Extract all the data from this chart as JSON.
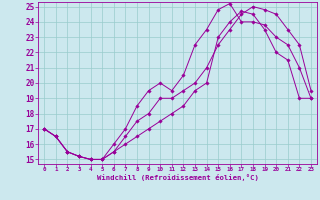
{
  "xlabel": "Windchill (Refroidissement éolien,°C)",
  "bg_color": "#cce8ee",
  "line_color": "#990099",
  "grid_color": "#99cccc",
  "xlim": [
    -0.5,
    23.5
  ],
  "ylim": [
    14.7,
    25.3
  ],
  "xticks": [
    0,
    1,
    2,
    3,
    4,
    5,
    6,
    7,
    8,
    9,
    10,
    11,
    12,
    13,
    14,
    15,
    16,
    17,
    18,
    19,
    20,
    21,
    22,
    23
  ],
  "yticks": [
    15,
    16,
    17,
    18,
    19,
    20,
    21,
    22,
    23,
    24,
    25
  ],
  "curve1_x": [
    0,
    1,
    2,
    3,
    4,
    5,
    6,
    7,
    8,
    9,
    10,
    11,
    12,
    13,
    14,
    15,
    16,
    17,
    18,
    19,
    20,
    21,
    22,
    23
  ],
  "curve1_y": [
    17.0,
    16.5,
    15.5,
    15.2,
    15.0,
    15.0,
    15.5,
    16.0,
    16.5,
    17.0,
    17.5,
    18.0,
    18.5,
    19.5,
    20.0,
    23.0,
    24.0,
    24.7,
    24.5,
    23.5,
    22.0,
    21.5,
    19.0,
    19.0
  ],
  "curve2_x": [
    0,
    1,
    2,
    3,
    4,
    5,
    6,
    7,
    8,
    9,
    10,
    11,
    12,
    13,
    14,
    15,
    16,
    17,
    18,
    19,
    20,
    21,
    22,
    23
  ],
  "curve2_y": [
    17.0,
    16.5,
    15.5,
    15.2,
    15.0,
    15.0,
    16.0,
    17.0,
    18.5,
    19.5,
    20.0,
    19.5,
    20.5,
    22.5,
    23.5,
    24.8,
    25.2,
    24.0,
    24.0,
    23.8,
    23.0,
    22.5,
    21.0,
    19.0
  ],
  "curve3_x": [
    0,
    1,
    2,
    3,
    4,
    5,
    6,
    7,
    8,
    9,
    10,
    11,
    12,
    13,
    14,
    15,
    16,
    17,
    18,
    19,
    20,
    21,
    22,
    23
  ],
  "curve3_y": [
    17.0,
    16.5,
    15.5,
    15.2,
    15.0,
    15.0,
    15.5,
    16.5,
    17.5,
    18.0,
    19.0,
    19.0,
    19.5,
    20.0,
    21.0,
    22.5,
    23.5,
    24.5,
    25.0,
    24.8,
    24.5,
    23.5,
    22.5,
    19.5
  ]
}
